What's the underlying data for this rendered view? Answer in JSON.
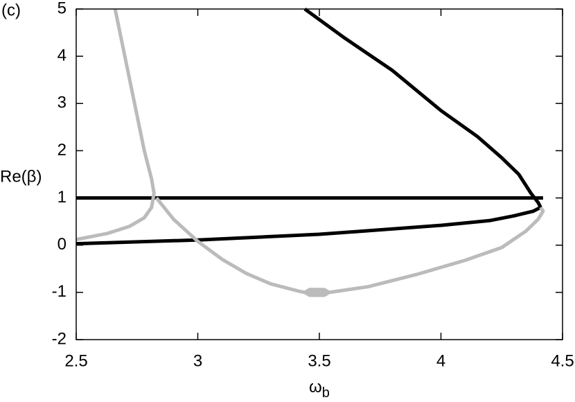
{
  "chart_data": {
    "type": "line",
    "annotation": "(c)",
    "ylabel": "Re(β)",
    "xlabel": "ω",
    "xlabel_sub": "b",
    "xlim": [
      2.5,
      4.5
    ],
    "xticks": [
      2.5,
      3,
      3.5,
      4,
      4.5
    ],
    "ylim": [
      -2,
      5
    ],
    "yticks": [
      -2,
      -1,
      0,
      1,
      2,
      3,
      4,
      5
    ],
    "grid": false,
    "series": [
      {
        "color": "#000000",
        "x": [
          2.5,
          4.42
        ],
        "y": [
          1,
          1
        ]
      },
      {
        "color": "#000000",
        "x": [
          3.44,
          3.6,
          3.8,
          4.0,
          4.15,
          4.25,
          4.32,
          4.37,
          4.4,
          4.41,
          4.38,
          4.3,
          4.2,
          4.0,
          3.5,
          3.0,
          2.5
        ],
        "y": [
          5,
          4.4,
          3.7,
          2.85,
          2.3,
          1.85,
          1.5,
          1.1,
          0.9,
          0.8,
          0.72,
          0.62,
          0.52,
          0.42,
          0.23,
          0.11,
          0.03
        ]
      },
      {
        "color": "#bbbbbb",
        "x": [
          2.66,
          2.72,
          2.78,
          2.81,
          2.82,
          2.81,
          2.78,
          2.72,
          2.63,
          2.5
        ],
        "y": [
          5,
          3.5,
          2.0,
          1.4,
          1.1,
          0.8,
          0.58,
          0.4,
          0.25,
          0.12
        ]
      },
      {
        "color": "#bbbbbb",
        "x": [
          2.83,
          2.9,
          3.0,
          3.1,
          3.2,
          3.3,
          3.42,
          3.44,
          3.46,
          3.52,
          3.54,
          3.52,
          3.46,
          3.44,
          3.54,
          3.7,
          3.9,
          4.1,
          4.25,
          4.35,
          4.4,
          4.42,
          4.41
        ],
        "y": [
          1,
          0.55,
          0.08,
          -0.3,
          -0.6,
          -0.82,
          -0.98,
          -1.0,
          -0.94,
          -0.94,
          -1.0,
          -1.06,
          -1.06,
          -1.0,
          -1.0,
          -0.88,
          -0.62,
          -0.32,
          -0.05,
          0.3,
          0.55,
          0.72,
          0.8
        ]
      }
    ]
  }
}
